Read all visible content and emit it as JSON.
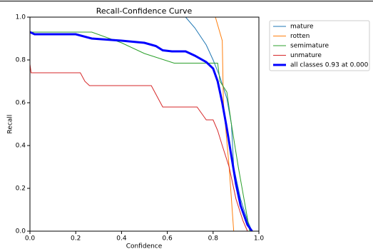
{
  "chart_data": {
    "type": "line",
    "title": "Recall-Confidence Curve",
    "xlabel": "Confidence",
    "ylabel": "Recall",
    "xlim": [
      0,
      1
    ],
    "ylim": [
      0,
      1
    ],
    "xticks": [
      {
        "value": 0,
        "label": "0.0"
      },
      0.2,
      0.4,
      0.6,
      0.8,
      {
        "value": 1,
        "label": "1.0"
      }
    ],
    "yticks": [
      {
        "value": 0,
        "label": "0.0"
      },
      0.2,
      0.4,
      0.6,
      0.8,
      {
        "value": 1,
        "label": "1.0"
      }
    ],
    "legend": "outside-upper-right",
    "series": [
      {
        "name": "mature",
        "color": "#1f77b4",
        "width": 1,
        "x": [
          0.68,
          0.72,
          0.77,
          0.8,
          0.83,
          0.86,
          0.88,
          0.89,
          0.92,
          0.95,
          0.97
        ],
        "values": [
          1.0,
          0.95,
          0.87,
          0.8,
          0.72,
          0.62,
          0.5,
          0.3,
          0.15,
          0.05,
          0.0
        ]
      },
      {
        "name": "rotten",
        "color": "#ff7f0e",
        "width": 1,
        "x": [
          0.81,
          0.84,
          0.845,
          0.87,
          0.89
        ],
        "values": [
          1.0,
          0.89,
          0.6,
          0.3,
          0.0
        ]
      },
      {
        "name": "semimature",
        "color": "#2ca02c",
        "width": 1,
        "x": [
          0,
          0.27,
          0.4,
          0.5,
          0.63,
          0.82,
          0.83,
          0.86,
          0.88,
          0.91,
          0.94,
          0.96
        ],
        "values": [
          0.93,
          0.93,
          0.88,
          0.83,
          0.785,
          0.785,
          0.7,
          0.65,
          0.5,
          0.3,
          0.12,
          0.0
        ]
      },
      {
        "name": "unmature",
        "color": "#d62728",
        "width": 1,
        "x": [
          0,
          0.005,
          0.22,
          0.24,
          0.26,
          0.53,
          0.58,
          0.73,
          0.75,
          0.77,
          0.8,
          0.82,
          0.84,
          0.87,
          0.9,
          0.93,
          0.95
        ],
        "values": [
          0.78,
          0.74,
          0.74,
          0.7,
          0.68,
          0.68,
          0.58,
          0.58,
          0.55,
          0.52,
          0.52,
          0.47,
          0.4,
          0.3,
          0.15,
          0.05,
          0.0
        ]
      },
      {
        "name": "all classes 0.93 at 0.000",
        "color": "#0000ff",
        "width": 3,
        "x": [
          0,
          0.02,
          0.2,
          0.27,
          0.4,
          0.5,
          0.55,
          0.58,
          0.62,
          0.68,
          0.72,
          0.77,
          0.8,
          0.82,
          0.84,
          0.86,
          0.88,
          0.9,
          0.92,
          0.95,
          0.97
        ],
        "values": [
          0.93,
          0.92,
          0.92,
          0.9,
          0.89,
          0.88,
          0.865,
          0.845,
          0.84,
          0.84,
          0.82,
          0.79,
          0.76,
          0.7,
          0.6,
          0.48,
          0.35,
          0.22,
          0.12,
          0.03,
          0.0
        ]
      }
    ]
  }
}
